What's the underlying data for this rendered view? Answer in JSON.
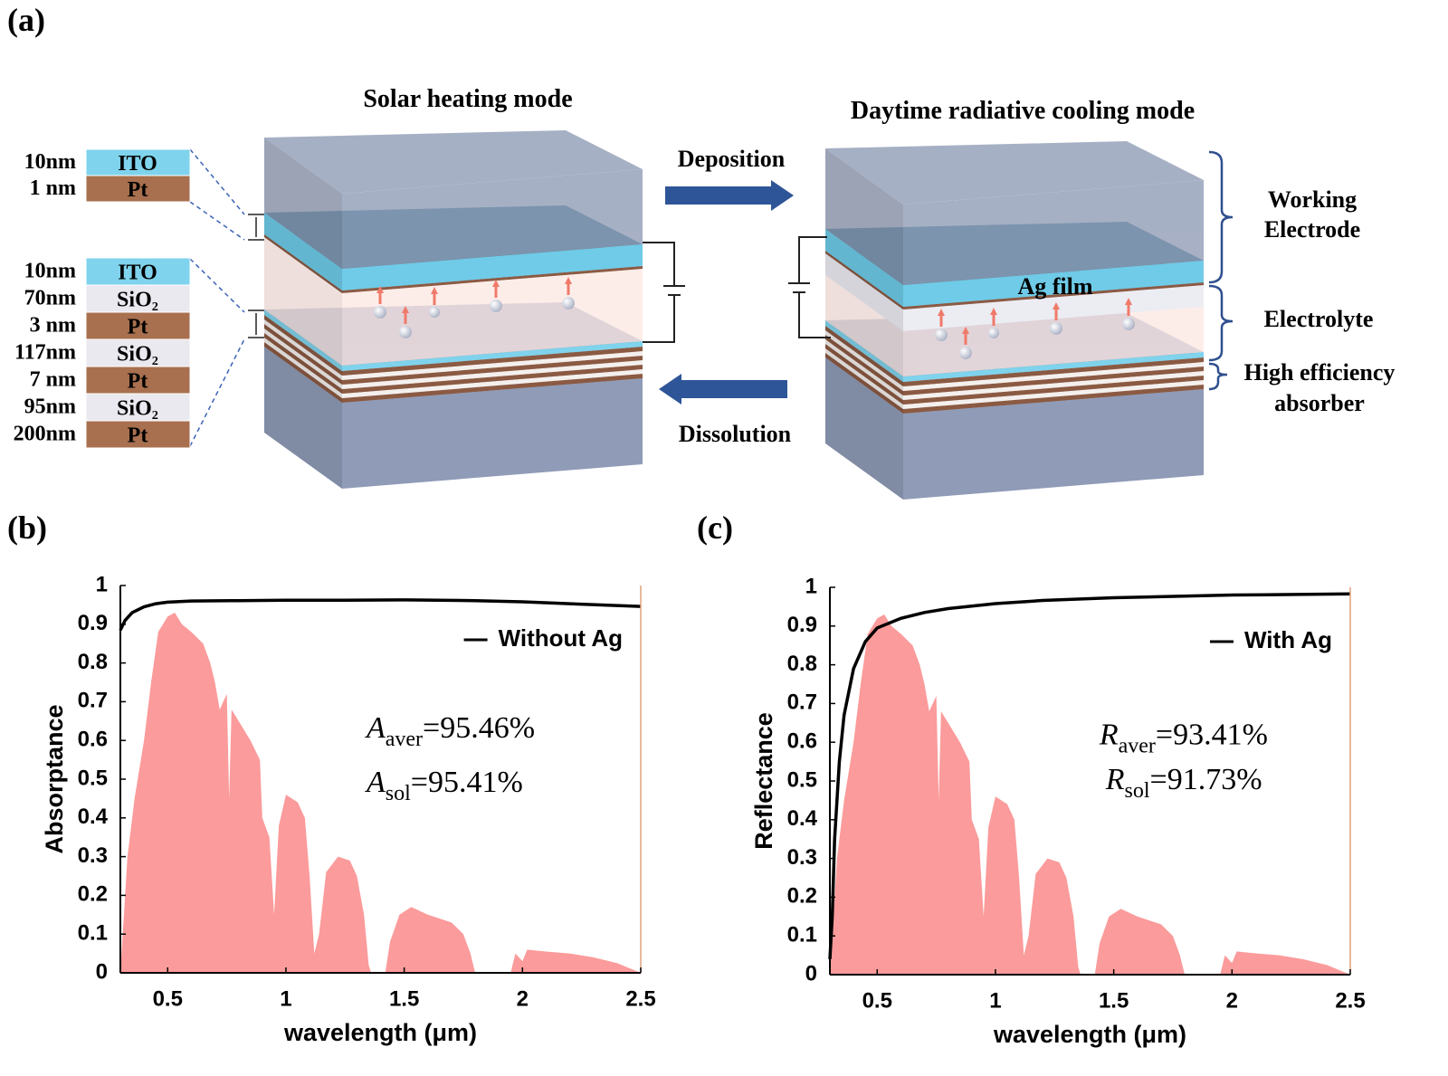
{
  "diagram": {
    "panel_label": "(a)",
    "left_title": "Solar heating mode",
    "right_title": "Daytime radiative cooling mode",
    "deposition": "Deposition",
    "dissolution": "Dissolution",
    "ag_film": "Ag film",
    "top_stack": [
      {
        "thickness": "10nm",
        "material": "ITO",
        "color": "#7fd3ec"
      },
      {
        "thickness": "1 nm",
        "material": "Pt",
        "color": "#a8704f"
      }
    ],
    "bottom_stack": [
      {
        "thickness": "10nm",
        "material": "ITO",
        "color": "#7fd3ec"
      },
      {
        "thickness": "70nm",
        "material": "SiO₂",
        "color": "#e9e9ef"
      },
      {
        "thickness": "3 nm",
        "material": "Pt",
        "color": "#a8704f"
      },
      {
        "thickness": "117nm",
        "material": "SiO₂",
        "color": "#e9e9ef"
      },
      {
        "thickness": "7 nm",
        "material": "Pt",
        "color": "#a8704f"
      },
      {
        "thickness": "95nm",
        "material": "SiO₂",
        "color": "#e9e9ef"
      },
      {
        "thickness": "200nm",
        "material": "Pt",
        "color": "#a8704f"
      }
    ],
    "braces": [
      {
        "lines": [
          "Working",
          "Electrode"
        ]
      },
      {
        "lines": [
          "Electrolyte"
        ]
      },
      {
        "lines": [
          "High efficiency",
          "absorber"
        ]
      }
    ]
  },
  "chart_data": [
    {
      "type": "line",
      "panel_label": "(b)",
      "xlabel": "wavelength (μm)",
      "ylabel": "Absorptance",
      "xlim": [
        0.3,
        2.5
      ],
      "ylim": [
        0,
        1
      ],
      "xticks": [
        0.5,
        1,
        1.5,
        2,
        2.5
      ],
      "yticks": [
        0,
        0.1,
        0.2,
        0.3,
        0.4,
        0.5,
        0.6,
        0.7,
        0.8,
        0.9,
        1
      ],
      "legend": "upper right",
      "series": [
        {
          "name": "Without Ag",
          "color": "#000000",
          "x": [
            0.3,
            0.32,
            0.35,
            0.4,
            0.45,
            0.5,
            0.6,
            0.8,
            1,
            1.2,
            1.5,
            1.8,
            2,
            2.2,
            2.5
          ],
          "values": [
            0.885,
            0.91,
            0.93,
            0.945,
            0.953,
            0.957,
            0.96,
            0.961,
            0.962,
            0.962,
            0.963,
            0.961,
            0.958,
            0.953,
            0.946
          ]
        },
        {
          "type": "area",
          "color": "#fb9b9b",
          "x": [
            0.3,
            0.33,
            0.36,
            0.4,
            0.43,
            0.46,
            0.5,
            0.53,
            0.56,
            0.6,
            0.65,
            0.68,
            0.7,
            0.72,
            0.75,
            0.76,
            0.77,
            0.8,
            0.85,
            0.89,
            0.9,
            0.93,
            0.95,
            0.97,
            1,
            1.05,
            1.08,
            1.1,
            1.12,
            1.14,
            1.17,
            1.22,
            1.27,
            1.3,
            1.33,
            1.35,
            1.36,
            1.42,
            1.44,
            1.48,
            1.53,
            1.6,
            1.7,
            1.75,
            1.78,
            1.8,
            1.95,
            1.97,
            2,
            2.02,
            2.1,
            2.2,
            2.3,
            2.4,
            2.5
          ],
          "values": [
            0,
            0.3,
            0.45,
            0.6,
            0.75,
            0.88,
            0.92,
            0.93,
            0.9,
            0.88,
            0.85,
            0.8,
            0.75,
            0.68,
            0.72,
            0.45,
            0.68,
            0.65,
            0.6,
            0.55,
            0.4,
            0.35,
            0.15,
            0.38,
            0.46,
            0.44,
            0.4,
            0.25,
            0.05,
            0.1,
            0.26,
            0.3,
            0.29,
            0.25,
            0.15,
            0.02,
            0,
            0,
            0.08,
            0.15,
            0.17,
            0.15,
            0.13,
            0.1,
            0.05,
            0,
            0,
            0.05,
            0.03,
            0.06,
            0.055,
            0.05,
            0.04,
            0.025,
            0
          ]
        }
      ],
      "annotations": [
        {
          "symbol": "A",
          "subscript": "aver",
          "text": "=95.46%"
        },
        {
          "symbol": "A",
          "subscript": "sol",
          "text": "=95.41%"
        }
      ]
    },
    {
      "type": "line",
      "panel_label": "(c)",
      "xlabel": "wavelength (μm)",
      "ylabel": "Reflectance",
      "xlim": [
        0.3,
        2.5
      ],
      "ylim": [
        0,
        1
      ],
      "xticks": [
        0.5,
        1,
        1.5,
        2,
        2.5
      ],
      "yticks": [
        0,
        0.1,
        0.2,
        0.3,
        0.4,
        0.5,
        0.6,
        0.7,
        0.8,
        0.9,
        1
      ],
      "legend": "upper right",
      "series": [
        {
          "name": "With Ag",
          "color": "#000000",
          "x": [
            0.3,
            0.31,
            0.32,
            0.34,
            0.36,
            0.4,
            0.45,
            0.5,
            0.6,
            0.7,
            0.8,
            1,
            1.2,
            1.5,
            2,
            2.5
          ],
          "values": [
            0.04,
            0.15,
            0.35,
            0.55,
            0.67,
            0.79,
            0.86,
            0.895,
            0.92,
            0.935,
            0.945,
            0.958,
            0.966,
            0.973,
            0.98,
            0.983
          ]
        },
        {
          "type": "area",
          "color": "#fb9b9b",
          "x": [
            0.3,
            0.33,
            0.36,
            0.4,
            0.43,
            0.46,
            0.5,
            0.53,
            0.56,
            0.6,
            0.65,
            0.68,
            0.7,
            0.72,
            0.75,
            0.76,
            0.77,
            0.8,
            0.85,
            0.89,
            0.9,
            0.93,
            0.95,
            0.97,
            1,
            1.05,
            1.08,
            1.1,
            1.12,
            1.14,
            1.17,
            1.22,
            1.27,
            1.3,
            1.33,
            1.35,
            1.36,
            1.42,
            1.44,
            1.48,
            1.53,
            1.6,
            1.7,
            1.75,
            1.78,
            1.8,
            1.95,
            1.97,
            2,
            2.02,
            2.1,
            2.2,
            2.3,
            2.4,
            2.5
          ],
          "values": [
            0,
            0.3,
            0.45,
            0.6,
            0.75,
            0.88,
            0.92,
            0.93,
            0.9,
            0.88,
            0.85,
            0.8,
            0.75,
            0.68,
            0.72,
            0.45,
            0.68,
            0.65,
            0.6,
            0.55,
            0.4,
            0.35,
            0.15,
            0.38,
            0.46,
            0.44,
            0.4,
            0.25,
            0.05,
            0.1,
            0.26,
            0.3,
            0.29,
            0.25,
            0.15,
            0.02,
            0,
            0,
            0.08,
            0.15,
            0.17,
            0.15,
            0.13,
            0.1,
            0.05,
            0,
            0,
            0.05,
            0.03,
            0.06,
            0.055,
            0.05,
            0.04,
            0.025,
            0
          ]
        }
      ],
      "annotations": [
        {
          "symbol": "R",
          "subscript": "aver",
          "text": "=93.41%"
        },
        {
          "symbol": "R",
          "subscript": "sol",
          "text": "=91.73%"
        }
      ]
    }
  ]
}
